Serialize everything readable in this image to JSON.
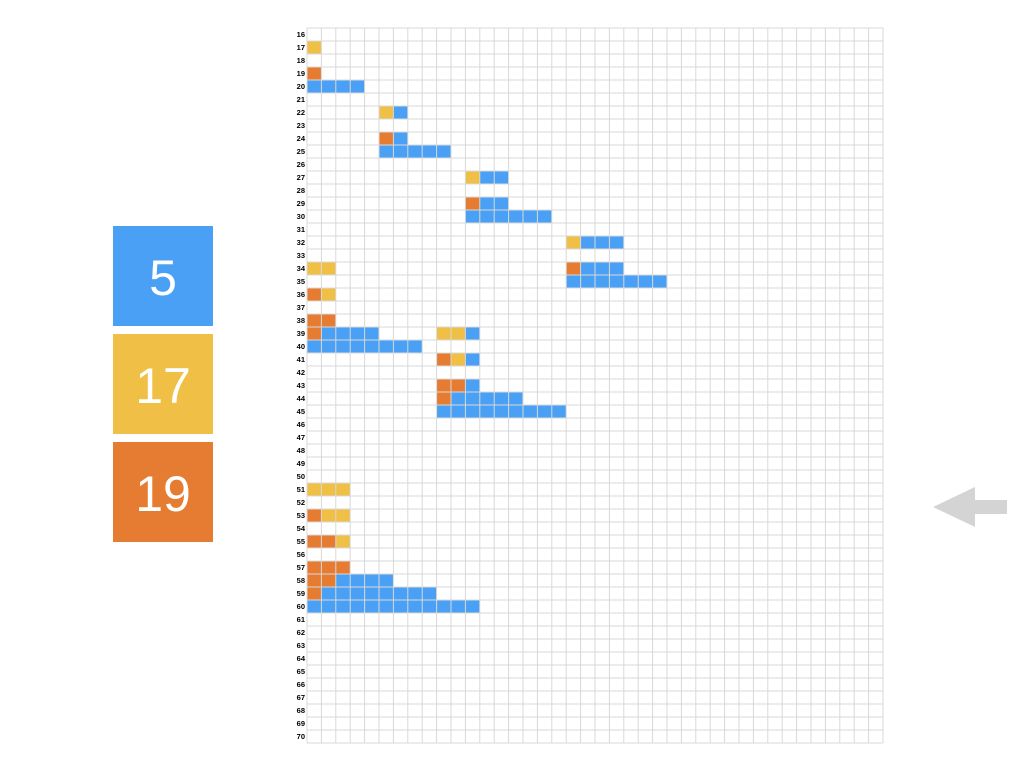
{
  "tiles": [
    {
      "label": 5,
      "color": "#4aa0f4"
    },
    {
      "label": 17,
      "color": "#f0bf45"
    },
    {
      "label": 19,
      "color": "#e67c32"
    }
  ],
  "grid": {
    "rows": [
      16,
      17,
      18,
      19,
      20,
      21,
      22,
      23,
      24,
      25,
      26,
      27,
      28,
      29,
      30,
      31,
      32,
      33,
      34,
      35,
      36,
      37,
      38,
      39,
      40,
      41,
      42,
      43,
      44,
      45,
      46,
      47,
      48,
      49,
      50,
      51,
      52,
      53,
      54,
      55,
      56,
      57,
      58,
      59,
      60,
      61,
      62,
      63,
      64,
      65,
      66,
      67,
      68,
      69,
      70
    ],
    "spans": [
      {
        "row": 17,
        "col": 0,
        "tile": 1,
        "count": 1
      },
      {
        "row": 19,
        "col": 0,
        "tile": 2,
        "count": 1
      },
      {
        "row": 20,
        "col": 0,
        "tile": 0,
        "count": 4
      },
      {
        "row": 22,
        "col": 5,
        "tile": 1,
        "count": 1
      },
      {
        "row": 22,
        "col": 6,
        "tile": 0,
        "count": 1
      },
      {
        "row": 24,
        "col": 5,
        "tile": 2,
        "count": 1
      },
      {
        "row": 24,
        "col": 6,
        "tile": 0,
        "count": 1
      },
      {
        "row": 25,
        "col": 5,
        "tile": 0,
        "count": 5
      },
      {
        "row": 27,
        "col": 11,
        "tile": 1,
        "count": 1
      },
      {
        "row": 27,
        "col": 12,
        "tile": 0,
        "count": 2
      },
      {
        "row": 29,
        "col": 11,
        "tile": 2,
        "count": 1
      },
      {
        "row": 29,
        "col": 12,
        "tile": 0,
        "count": 2
      },
      {
        "row": 30,
        "col": 11,
        "tile": 0,
        "count": 6
      },
      {
        "row": 32,
        "col": 18,
        "tile": 1,
        "count": 1
      },
      {
        "row": 32,
        "col": 19,
        "tile": 0,
        "count": 3
      },
      {
        "row": 34,
        "col": 0,
        "tile": 1,
        "count": 2
      },
      {
        "row": 34,
        "col": 18,
        "tile": 2,
        "count": 1
      },
      {
        "row": 34,
        "col": 19,
        "tile": 0,
        "count": 3
      },
      {
        "row": 35,
        "col": 18,
        "tile": 0,
        "count": 7
      },
      {
        "row": 36,
        "col": 0,
        "tile": 2,
        "count": 1
      },
      {
        "row": 36,
        "col": 1,
        "tile": 1,
        "count": 1
      },
      {
        "row": 38,
        "col": 0,
        "tile": 2,
        "count": 2
      },
      {
        "row": 39,
        "col": 0,
        "tile": 2,
        "count": 1
      },
      {
        "row": 39,
        "col": 1,
        "tile": 0,
        "count": 4
      },
      {
        "row": 39,
        "col": 9,
        "tile": 1,
        "count": 2
      },
      {
        "row": 39,
        "col": 11,
        "tile": 0,
        "count": 1
      },
      {
        "row": 40,
        "col": 0,
        "tile": 0,
        "count": 8
      },
      {
        "row": 41,
        "col": 9,
        "tile": 2,
        "count": 1
      },
      {
        "row": 41,
        "col": 10,
        "tile": 1,
        "count": 1
      },
      {
        "row": 41,
        "col": 11,
        "tile": 0,
        "count": 1
      },
      {
        "row": 43,
        "col": 9,
        "tile": 2,
        "count": 2
      },
      {
        "row": 43,
        "col": 11,
        "tile": 0,
        "count": 1
      },
      {
        "row": 44,
        "col": 9,
        "tile": 2,
        "count": 1
      },
      {
        "row": 44,
        "col": 10,
        "tile": 0,
        "count": 5
      },
      {
        "row": 45,
        "col": 9,
        "tile": 0,
        "count": 9
      },
      {
        "row": 51,
        "col": 0,
        "tile": 1,
        "count": 3
      },
      {
        "row": 53,
        "col": 0,
        "tile": 2,
        "count": 1
      },
      {
        "row": 53,
        "col": 1,
        "tile": 1,
        "count": 2
      },
      {
        "row": 55,
        "col": 0,
        "tile": 2,
        "count": 2
      },
      {
        "row": 55,
        "col": 2,
        "tile": 1,
        "count": 1
      },
      {
        "row": 57,
        "col": 0,
        "tile": 2,
        "count": 3
      },
      {
        "row": 58,
        "col": 0,
        "tile": 2,
        "count": 2
      },
      {
        "row": 58,
        "col": 2,
        "tile": 0,
        "count": 4
      },
      {
        "row": 59,
        "col": 0,
        "tile": 2,
        "count": 1
      },
      {
        "row": 59,
        "col": 1,
        "tile": 0,
        "count": 8
      },
      {
        "row": 60,
        "col": 0,
        "tile": 0,
        "count": 12
      }
    ]
  }
}
